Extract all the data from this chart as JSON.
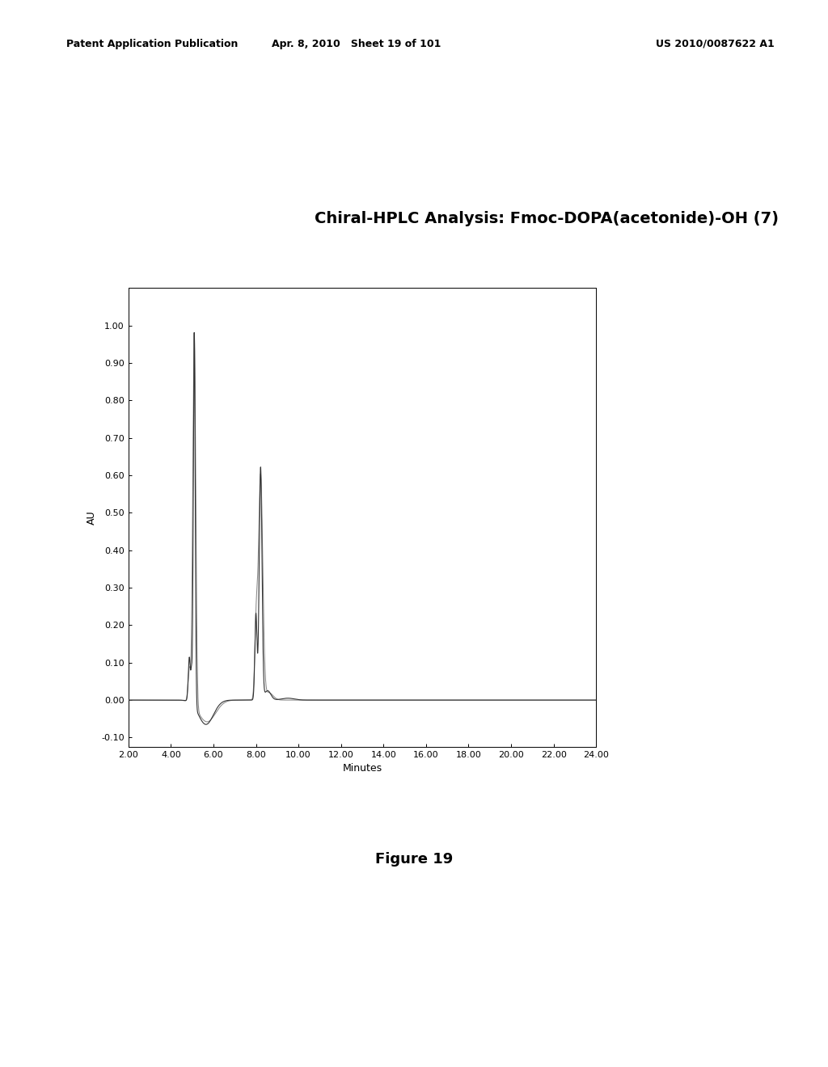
{
  "title": "Chiral-HPLC Analysis: Fmoc-DOPA(acetonide)-OH (7)",
  "xlabel": "Minutes",
  "ylabel": "AU",
  "xlim": [
    2.0,
    24.0
  ],
  "ylim": [
    -0.125,
    1.1
  ],
  "yticks": [
    -0.1,
    0.0,
    0.1,
    0.2,
    0.3,
    0.4,
    0.5,
    0.6,
    0.7,
    0.8,
    0.9,
    1.0
  ],
  "xticks": [
    2.0,
    4.0,
    6.0,
    8.0,
    10.0,
    12.0,
    14.0,
    16.0,
    18.0,
    20.0,
    22.0,
    24.0
  ],
  "header_left": "Patent Application Publication",
  "header_center": "Apr. 8, 2010   Sheet 19 of 101",
  "header_right": "US 2010/0087622 A1",
  "figure_label": "Figure 19",
  "line_color_dark": "#333333",
  "line_color_light": "#888888",
  "background_color": "#ffffff",
  "title_fontsize": 14,
  "axis_fontsize": 8,
  "header_fontsize": 9,
  "figure_label_fontsize": 13
}
